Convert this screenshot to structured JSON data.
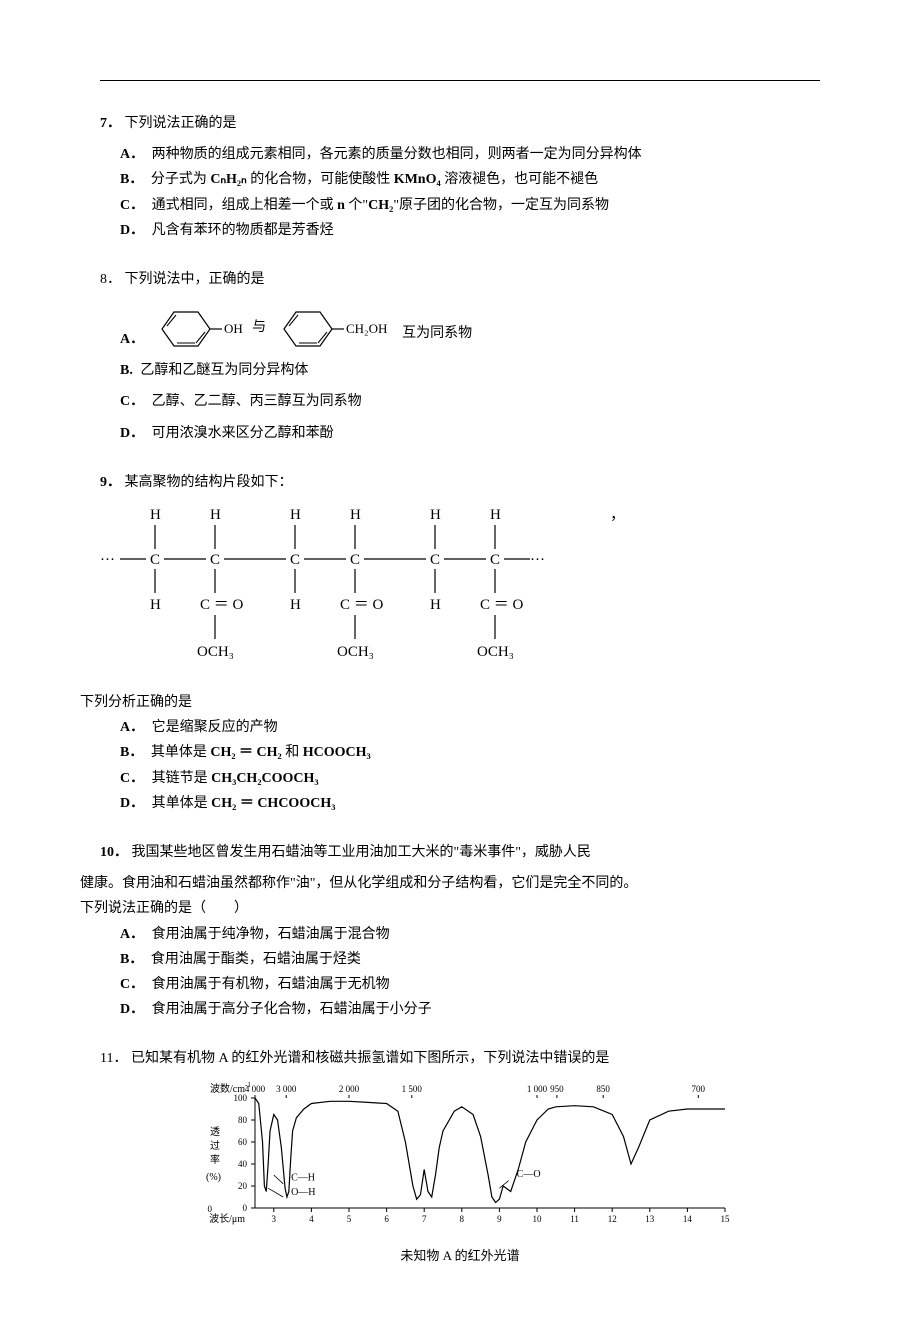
{
  "colors": {
    "text": "#000000",
    "background": "#ffffff",
    "line": "#000000"
  },
  "typography": {
    "body_font": "SimSun",
    "body_size_pt": 11,
    "line_height": 1.8,
    "bold_labels": true
  },
  "q7": {
    "num": "7．",
    "stem": "下列说法正确的是",
    "optA_letter": "A．",
    "optA": "两种物质的组成元素相同，各元素的质量分数也相同，则两者一定为同分异构体",
    "optB_letter": "B．",
    "optB_pre": "分子式为 ",
    "optB_formula": "CₙH₂ₙ",
    "optB_mid": " 的化合物，可能使酸性 ",
    "optB_formula2": "KMnO₄",
    "optB_post": " 溶液褪色，也可能不褪色",
    "optC_letter": "C．",
    "optC_pre": "通式相同，组成上相差一个或 ",
    "optC_n": "n",
    "optC_mid": " 个\"",
    "optC_formula": "CH₂",
    "optC_post": "\"原子团的化合物，一定互为同系物",
    "optD_letter": "D．",
    "optD": "凡含有苯环的物质都是芳香烃"
  },
  "q8": {
    "num": "8．",
    "stem": "下列说法中，正确的是",
    "optA_letter": "A．",
    "optA_post": "互为同系物",
    "ringA_label1": "OH",
    "ringA_mid": "与",
    "ringA_label2": "CH₂OH",
    "optB_letter": "B.",
    "optB": "乙醇和乙醚互为同分异构体",
    "optC_letter": "C．",
    "optC": "乙醇、乙二醇、丙三醇互为同系物",
    "optD_letter": "D．",
    "optD": "可用浓溴水来区分乙醇和苯酚"
  },
  "q9": {
    "num": "9．",
    "stem": "某高聚物的结构片段如下：",
    "trailing_comma": "，",
    "polymer": {
      "H": "H",
      "C": "C",
      "CO": "C ＝ O",
      "OCH3": "OCH₃",
      "dots_left": "···",
      "dots_right": "···"
    },
    "sub_stem": "下列分析正确的是",
    "optA_letter": "A．",
    "optA": "它是缩聚反应的产物",
    "optB_letter": "B．",
    "optB_pre": "其单体是 ",
    "optB_f1": "CH₂ ＝ CH₂",
    "optB_mid": " 和 ",
    "optB_f2": "HCOOCH₃",
    "optC_letter": "C．",
    "optC_pre": "其链节是 ",
    "optC_f": "CH₃CH₂COOCH₃",
    "optD_letter": "D．",
    "optD_pre": "其单体是 ",
    "optD_f": "CH₂ ＝ CHCOOCH₃"
  },
  "q10": {
    "num": "10．",
    "stem_l1": "我国某些地区曾发生用石蜡油等工业用油加工大米的\"毒米事件\"，威胁人民",
    "stem_l2": "健康。食用油和石蜡油虽然都称作\"油\"，但从化学组成和分子结构看，它们是完全不同的。",
    "stem_l3": "下列说法正确的是（　　）",
    "optA_letter": "A．",
    "optA": "食用油属于纯净物，石蜡油属于混合物",
    "optB_letter": "B．",
    "optB": "食用油属于酯类，石蜡油属于烃类",
    "optC_letter": "C．",
    "optC": "食用油属于有机物，石蜡油属于无机物",
    "optD_letter": "D．",
    "optD": "食用油属于高分子化合物，石蜡油属于小分子"
  },
  "q11": {
    "num": "11．",
    "stem": "已知某有机物 A 的红外光谱和核磁共振氢谱如下图所示，下列说法中错误的是",
    "spectrum": {
      "type": "line",
      "y_label": "透过率(%)",
      "x_label_top_pre": "波数/cm",
      "x_label_top_sup": "-1",
      "x_label_bottom": "波长/μm",
      "title": "未知物 A 的红外光谱",
      "y_ticks": [
        0,
        20,
        40,
        60,
        80,
        100
      ],
      "y_lim": [
        0,
        100
      ],
      "x_top_ticks": [
        "4 000",
        "3 000",
        "2 000",
        "1 500",
        "1 000",
        "950",
        "850",
        "700"
      ],
      "x_bottom_ticks": [
        3,
        4,
        5,
        6,
        7,
        8,
        9,
        10,
        11,
        12,
        13,
        14,
        15
      ],
      "x_bottom_lim": [
        2.5,
        15
      ],
      "peak_labels": {
        "CH": "C—H",
        "OH": "O—H",
        "CO": "C—O"
      },
      "line_color": "#000000",
      "line_width": 1.2,
      "axis_color": "#000000",
      "aspect": "4.5:1",
      "tick_fontsize": 9,
      "label_fontsize": 10,
      "curve_points": [
        [
          2.5,
          100
        ],
        [
          2.6,
          95
        ],
        [
          2.7,
          60
        ],
        [
          2.75,
          20
        ],
        [
          2.8,
          15
        ],
        [
          2.85,
          40
        ],
        [
          2.9,
          70
        ],
        [
          3.0,
          85
        ],
        [
          3.1,
          80
        ],
        [
          3.2,
          55
        ],
        [
          3.3,
          18
        ],
        [
          3.35,
          10
        ],
        [
          3.4,
          15
        ],
        [
          3.45,
          45
        ],
        [
          3.5,
          70
        ],
        [
          3.6,
          82
        ],
        [
          3.8,
          90
        ],
        [
          4.0,
          95
        ],
        [
          4.5,
          97
        ],
        [
          5.0,
          97
        ],
        [
          5.5,
          96
        ],
        [
          6.0,
          95
        ],
        [
          6.3,
          88
        ],
        [
          6.5,
          60
        ],
        [
          6.7,
          20
        ],
        [
          6.8,
          8
        ],
        [
          6.9,
          12
        ],
        [
          7.0,
          35
        ],
        [
          7.1,
          15
        ],
        [
          7.2,
          10
        ],
        [
          7.3,
          30
        ],
        [
          7.4,
          55
        ],
        [
          7.5,
          70
        ],
        [
          7.8,
          88
        ],
        [
          8.0,
          92
        ],
        [
          8.3,
          85
        ],
        [
          8.5,
          65
        ],
        [
          8.7,
          30
        ],
        [
          8.8,
          10
        ],
        [
          8.9,
          5
        ],
        [
          9.0,
          8
        ],
        [
          9.1,
          20
        ],
        [
          9.3,
          15
        ],
        [
          9.5,
          35
        ],
        [
          9.7,
          60
        ],
        [
          10.0,
          80
        ],
        [
          10.3,
          90
        ],
        [
          10.5,
          92
        ],
        [
          11.0,
          93
        ],
        [
          11.5,
          92
        ],
        [
          12.0,
          85
        ],
        [
          12.3,
          65
        ],
        [
          12.5,
          40
        ],
        [
          12.7,
          55
        ],
        [
          13.0,
          80
        ],
        [
          13.5,
          88
        ],
        [
          14.0,
          90
        ],
        [
          14.5,
          90
        ],
        [
          15.0,
          90
        ]
      ]
    }
  }
}
